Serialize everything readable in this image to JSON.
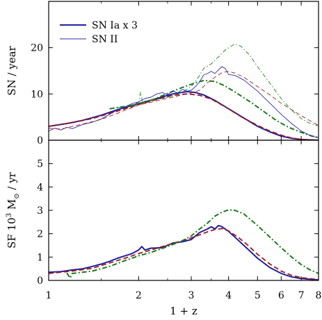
{
  "chart_data": [
    {
      "type": "line",
      "panel": "top",
      "ylabel": "SN / year",
      "xscale": "log",
      "xlim": [
        1,
        8
      ],
      "ylim": [
        0,
        30
      ],
      "yticks": [
        0,
        10,
        20
      ],
      "legend": {
        "placement": "top-left",
        "entries": [
          "SN Ia x 3",
          "SN II"
        ]
      },
      "series": [
        {
          "name": "SN Ia x 3",
          "color": "#1f1fa0",
          "style": "solid-thick",
          "points": [
            [
              1.0,
              3.0
            ],
            [
              1.15,
              3.6
            ],
            [
              1.3,
              4.3
            ],
            [
              1.5,
              5.4
            ],
            [
              1.7,
              6.6
            ],
            [
              2.0,
              7.9
            ],
            [
              2.3,
              9.0
            ],
            [
              2.6,
              10.0
            ],
            [
              2.9,
              10.5
            ],
            [
              3.1,
              10.3
            ],
            [
              3.3,
              9.8
            ],
            [
              3.6,
              8.6
            ],
            [
              4.0,
              6.8
            ],
            [
              4.5,
              4.8
            ],
            [
              5.0,
              3.0
            ],
            [
              5.5,
              1.8
            ],
            [
              6.0,
              0.9
            ],
            [
              6.5,
              0.4
            ],
            [
              7.0,
              0.15
            ],
            [
              8.0,
              0.0
            ]
          ]
        },
        {
          "color": "#a01818",
          "style": "dashed-thick",
          "points": [
            [
              1.0,
              3.0
            ],
            [
              1.2,
              3.8
            ],
            [
              1.4,
              4.7
            ],
            [
              1.7,
              6.3
            ],
            [
              2.0,
              7.7
            ],
            [
              2.3,
              8.8
            ],
            [
              2.6,
              9.7
            ],
            [
              2.9,
              10.0
            ],
            [
              3.2,
              9.7
            ],
            [
              3.5,
              8.9
            ],
            [
              3.9,
              7.2
            ],
            [
              4.4,
              5.1
            ],
            [
              5.0,
              3.2
            ],
            [
              5.5,
              2.0
            ],
            [
              6.0,
              1.1
            ],
            [
              6.5,
              0.5
            ],
            [
              7.0,
              0.2
            ],
            [
              8.0,
              0.0
            ]
          ]
        },
        {
          "color": "#1a7a1a",
          "style": "dashdot-thick",
          "points": [
            [
              1.6,
              6.8
            ],
            [
              1.8,
              7.3
            ],
            [
              2.0,
              7.8
            ],
            [
              2.2,
              8.6
            ],
            [
              2.5,
              10.1
            ],
            [
              2.8,
              11.4
            ],
            [
              3.1,
              12.4
            ],
            [
              3.3,
              12.9
            ],
            [
              3.6,
              12.7
            ],
            [
              3.9,
              11.7
            ],
            [
              4.3,
              10.0
            ],
            [
              4.8,
              8.0
            ],
            [
              5.3,
              6.0
            ],
            [
              5.8,
              4.2
            ],
            [
              6.4,
              2.7
            ],
            [
              7.0,
              1.7
            ],
            [
              7.6,
              0.9
            ],
            [
              8.0,
              0.6
            ]
          ]
        },
        {
          "name": "SN II",
          "color": "#2a2ab0",
          "style": "solid-thin",
          "points": [
            [
              1.0,
              2.0
            ],
            [
              1.05,
              2.6
            ],
            [
              1.1,
              2.2
            ],
            [
              1.15,
              2.8
            ],
            [
              1.2,
              2.5
            ],
            [
              1.3,
              3.4
            ],
            [
              1.4,
              3.9
            ],
            [
              1.5,
              4.6
            ],
            [
              1.6,
              5.6
            ],
            [
              1.7,
              6.6
            ],
            [
              1.8,
              7.2
            ],
            [
              1.9,
              7.9
            ],
            [
              2.0,
              8.3
            ],
            [
              2.1,
              9.0
            ],
            [
              2.2,
              9.3
            ],
            [
              2.3,
              10.0
            ],
            [
              2.4,
              10.3
            ],
            [
              2.5,
              9.8
            ],
            [
              2.6,
              10.7
            ],
            [
              2.7,
              10.2
            ],
            [
              2.8,
              11.0
            ],
            [
              2.9,
              10.6
            ],
            [
              3.0,
              10.8
            ],
            [
              3.1,
              11.6
            ],
            [
              3.2,
              12.6
            ],
            [
              3.3,
              14.1
            ],
            [
              3.4,
              14.4
            ],
            [
              3.5,
              14.9
            ],
            [
              3.6,
              14.4
            ],
            [
              3.7,
              15.2
            ],
            [
              3.8,
              15.9
            ],
            [
              3.9,
              15.5
            ],
            [
              4.0,
              14.2
            ],
            [
              4.2,
              14.0
            ],
            [
              4.5,
              13.0
            ],
            [
              5.0,
              10.6
            ],
            [
              5.5,
              8.0
            ],
            [
              6.0,
              5.6
            ],
            [
              6.5,
              3.6
            ],
            [
              7.0,
              2.0
            ],
            [
              7.5,
              1.0
            ],
            [
              8.0,
              0.5
            ]
          ]
        },
        {
          "color": "#a01818",
          "style": "dashed-thin",
          "points": [
            [
              1.0,
              2.6
            ],
            [
              1.1,
              2.4
            ],
            [
              1.2,
              3.0
            ],
            [
              1.3,
              3.5
            ],
            [
              1.4,
              4.0
            ],
            [
              1.5,
              4.5
            ],
            [
              1.6,
              5.2
            ],
            [
              1.7,
              5.8
            ],
            [
              1.8,
              6.5
            ],
            [
              1.9,
              7.0
            ],
            [
              2.0,
              7.6
            ],
            [
              2.2,
              8.2
            ],
            [
              2.4,
              8.8
            ],
            [
              2.6,
              9.3
            ],
            [
              2.8,
              9.8
            ],
            [
              3.0,
              10.2
            ],
            [
              3.2,
              10.8
            ],
            [
              3.4,
              12.4
            ],
            [
              3.6,
              13.6
            ],
            [
              3.8,
              14.6
            ],
            [
              4.0,
              14.9
            ],
            [
              4.2,
              14.5
            ],
            [
              4.5,
              13.6
            ],
            [
              5.0,
              11.6
            ],
            [
              5.5,
              9.8
            ],
            [
              6.0,
              8.0
            ],
            [
              6.5,
              6.6
            ],
            [
              7.0,
              5.3
            ],
            [
              7.5,
              4.2
            ],
            [
              8.0,
              3.2
            ]
          ]
        },
        {
          "color": "#1a7a1a",
          "style": "dashdot-thin",
          "points": [
            [
              1.7,
              7.0
            ],
            [
              1.9,
              7.6
            ],
            [
              2.0,
              8.2
            ],
            [
              2.03,
              10.4
            ],
            [
              2.06,
              8.4
            ],
            [
              2.2,
              8.7
            ],
            [
              2.4,
              9.0
            ],
            [
              2.6,
              9.6
            ],
            [
              2.8,
              10.4
            ],
            [
              3.0,
              11.6
            ],
            [
              3.2,
              14.0
            ],
            [
              3.3,
              15.5
            ],
            [
              3.5,
              16.5
            ],
            [
              3.7,
              18.0
            ],
            [
              3.9,
              19.5
            ],
            [
              4.1,
              20.4
            ],
            [
              4.2,
              20.8
            ],
            [
              4.4,
              20.3
            ],
            [
              4.7,
              18.4
            ],
            [
              5.0,
              15.9
            ],
            [
              5.5,
              12.3
            ],
            [
              6.0,
              9.0
            ],
            [
              6.5,
              6.5
            ],
            [
              7.0,
              4.7
            ],
            [
              7.5,
              3.6
            ],
            [
              8.0,
              3.1
            ]
          ]
        }
      ]
    },
    {
      "type": "line",
      "panel": "bottom",
      "ylabel": "SF 10^3 M⊙ / yr",
      "xlabel": "1 + z",
      "xscale": "log",
      "xlim": [
        1,
        8
      ],
      "ylim": [
        0,
        6
      ],
      "yticks": [
        0,
        1,
        2,
        3,
        4,
        5
      ],
      "xticks": [
        1,
        2,
        3,
        4,
        5,
        6,
        7,
        8
      ],
      "series": [
        {
          "color": "#1f1fa0",
          "style": "solid-thick",
          "points": [
            [
              1.0,
              0.35
            ],
            [
              1.1,
              0.38
            ],
            [
              1.2,
              0.45
            ],
            [
              1.3,
              0.5
            ],
            [
              1.4,
              0.6
            ],
            [
              1.5,
              0.7
            ],
            [
              1.6,
              0.82
            ],
            [
              1.7,
              0.95
            ],
            [
              1.8,
              1.05
            ],
            [
              1.9,
              1.15
            ],
            [
              2.0,
              1.3
            ],
            [
              2.05,
              1.45
            ],
            [
              2.1,
              1.3
            ],
            [
              2.2,
              1.38
            ],
            [
              2.4,
              1.4
            ],
            [
              2.6,
              1.6
            ],
            [
              2.8,
              1.65
            ],
            [
              3.0,
              1.75
            ],
            [
              3.2,
              2.05
            ],
            [
              3.4,
              2.2
            ],
            [
              3.5,
              2.3
            ],
            [
              3.6,
              2.2
            ],
            [
              3.7,
              2.35
            ],
            [
              3.8,
              2.3
            ],
            [
              4.0,
              2.1
            ],
            [
              4.2,
              1.85
            ],
            [
              4.5,
              1.5
            ],
            [
              5.0,
              0.95
            ],
            [
              5.5,
              0.55
            ],
            [
              6.0,
              0.3
            ],
            [
              6.5,
              0.15
            ],
            [
              7.0,
              0.08
            ],
            [
              8.0,
              0.02
            ]
          ]
        },
        {
          "color": "#a01818",
          "style": "dashed-thick",
          "points": [
            [
              1.0,
              0.3
            ],
            [
              1.2,
              0.4
            ],
            [
              1.4,
              0.52
            ],
            [
              1.6,
              0.75
            ],
            [
              1.8,
              0.95
            ],
            [
              2.0,
              1.15
            ],
            [
              2.2,
              1.3
            ],
            [
              2.4,
              1.45
            ],
            [
              2.6,
              1.58
            ],
            [
              2.8,
              1.7
            ],
            [
              3.0,
              1.82
            ],
            [
              3.2,
              1.95
            ],
            [
              3.4,
              2.08
            ],
            [
              3.6,
              2.18
            ],
            [
              3.8,
              2.22
            ],
            [
              4.0,
              2.12
            ],
            [
              4.3,
              1.85
            ],
            [
              4.6,
              1.55
            ],
            [
              5.0,
              1.12
            ],
            [
              5.5,
              0.7
            ],
            [
              6.0,
              0.4
            ],
            [
              6.5,
              0.22
            ],
            [
              7.0,
              0.12
            ],
            [
              8.0,
              0.04
            ]
          ]
        },
        {
          "color": "#1a7a1a",
          "style": "dashdot-thick",
          "points": [
            [
              1.15,
              0.32
            ],
            [
              1.18,
              0.1
            ],
            [
              1.2,
              0.3
            ],
            [
              1.4,
              0.4
            ],
            [
              1.6,
              0.6
            ],
            [
              1.8,
              0.85
            ],
            [
              2.0,
              1.05
            ],
            [
              2.2,
              1.2
            ],
            [
              2.5,
              1.45
            ],
            [
              2.8,
              1.7
            ],
            [
              3.0,
              1.9
            ],
            [
              3.2,
              2.2
            ],
            [
              3.4,
              2.45
            ],
            [
              3.6,
              2.75
            ],
            [
              3.8,
              2.92
            ],
            [
              4.0,
              3.02
            ],
            [
              4.2,
              3.0
            ],
            [
              4.5,
              2.85
            ],
            [
              5.0,
              2.35
            ],
            [
              5.5,
              1.85
            ],
            [
              6.0,
              1.4
            ],
            [
              6.5,
              1.0
            ],
            [
              7.0,
              0.68
            ],
            [
              7.5,
              0.45
            ],
            [
              8.0,
              0.3
            ]
          ]
        }
      ]
    }
  ]
}
